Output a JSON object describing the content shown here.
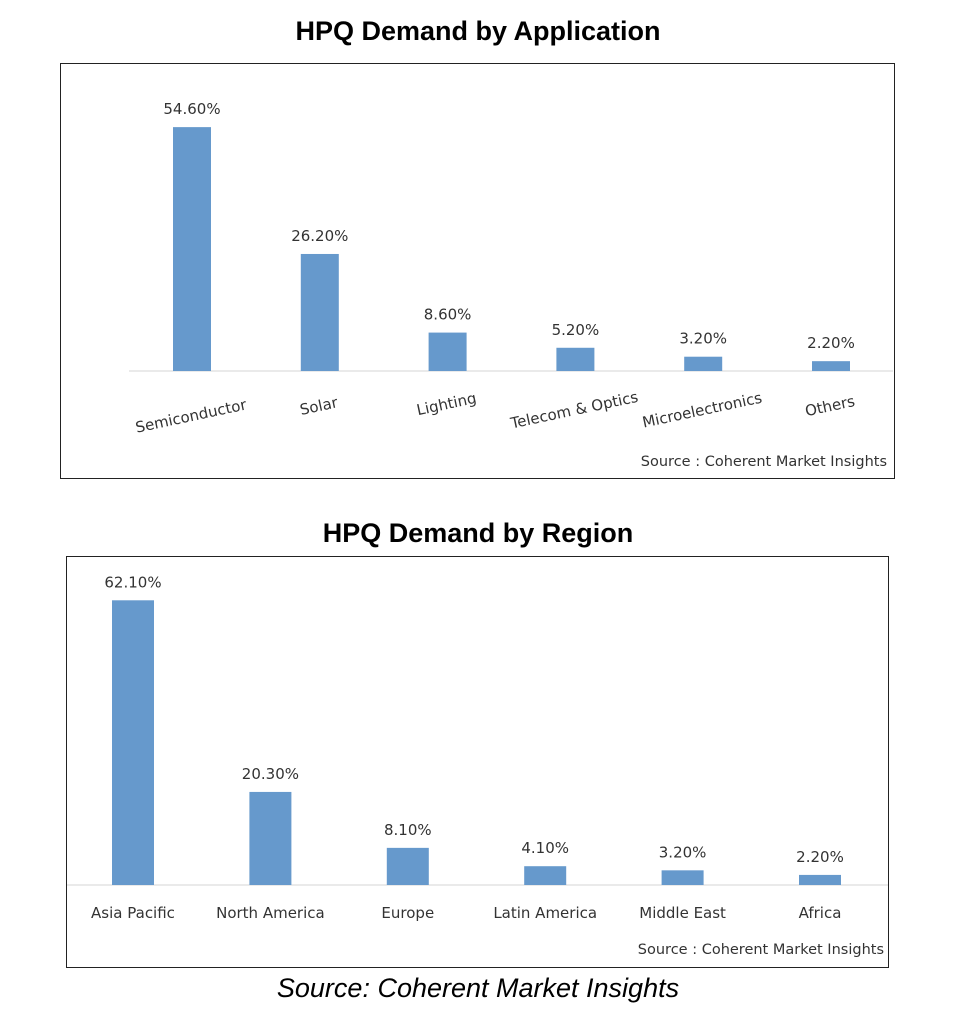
{
  "chart_data": [
    {
      "type": "bar",
      "title": "HPQ Demand by Application",
      "categories": [
        "Semiconductor",
        "Solar",
        "Lighting",
        "Telecom & Optics",
        "Microelectronics",
        "Others"
      ],
      "values": [
        54.6,
        26.2,
        8.6,
        5.2,
        3.2,
        2.2
      ],
      "data_labels": [
        "54.60%",
        "26.20%",
        "8.60%",
        "5.20%",
        "3.20%",
        "2.20%"
      ],
      "ylim": [
        0,
        60
      ],
      "grid": false,
      "legend": "none",
      "bar_color": "#6699cc",
      "source": "Source : Coherent Market Insights"
    },
    {
      "type": "bar",
      "title": "HPQ Demand by Region",
      "categories": [
        "Asia Pacific",
        "North America",
        "Europe",
        "Latin America",
        "Middle East",
        "Africa"
      ],
      "values": [
        62.1,
        20.3,
        8.1,
        4.1,
        3.2,
        2.2
      ],
      "data_labels": [
        "62.10%",
        "20.30%",
        "8.10%",
        "4.10%",
        "3.20%",
        "2.20%"
      ],
      "ylim": [
        0,
        65
      ],
      "grid": false,
      "legend": "none",
      "bar_color": "#6699cc",
      "source": "Source : Coherent Market Insights"
    }
  ],
  "footer": "Source: Coherent Market Insights"
}
